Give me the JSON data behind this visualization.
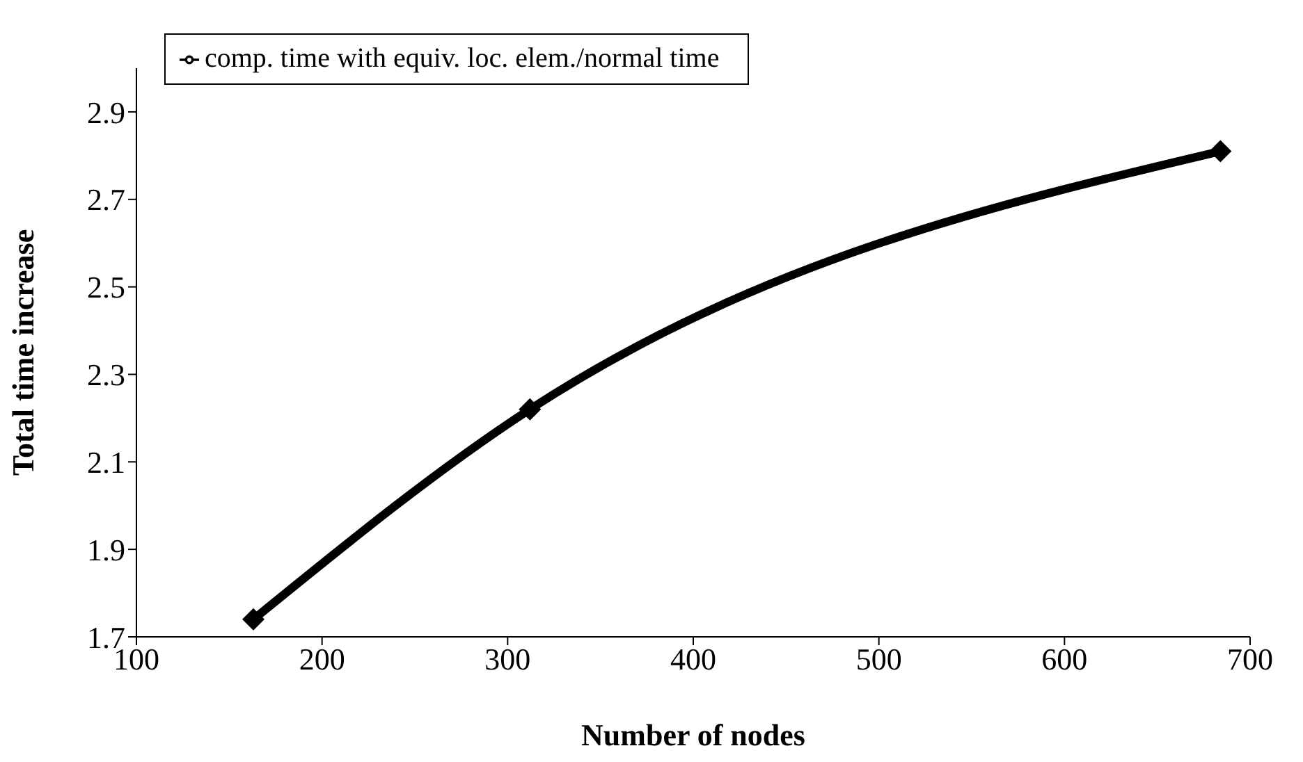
{
  "chart_data": {
    "type": "line",
    "xlabel": "Number of nodes",
    "ylabel": "Total time increase",
    "x": [
      163,
      312,
      684
    ],
    "series": [
      {
        "name": "comp. time with equiv. loc. elem./normal time",
        "color": "#000000",
        "values": [
          1.74,
          2.22,
          2.81
        ]
      }
    ],
    "xlim": [
      100,
      700
    ],
    "xticks": [
      100,
      200,
      300,
      400,
      500,
      600,
      700
    ],
    "ylim": [
      1.7,
      3.0
    ],
    "yticks": [
      1.7,
      1.9,
      2.1,
      2.3,
      2.5,
      2.7,
      2.9
    ],
    "grid": false,
    "legend": "top left",
    "marker": "diamond",
    "line_style": "solid"
  }
}
